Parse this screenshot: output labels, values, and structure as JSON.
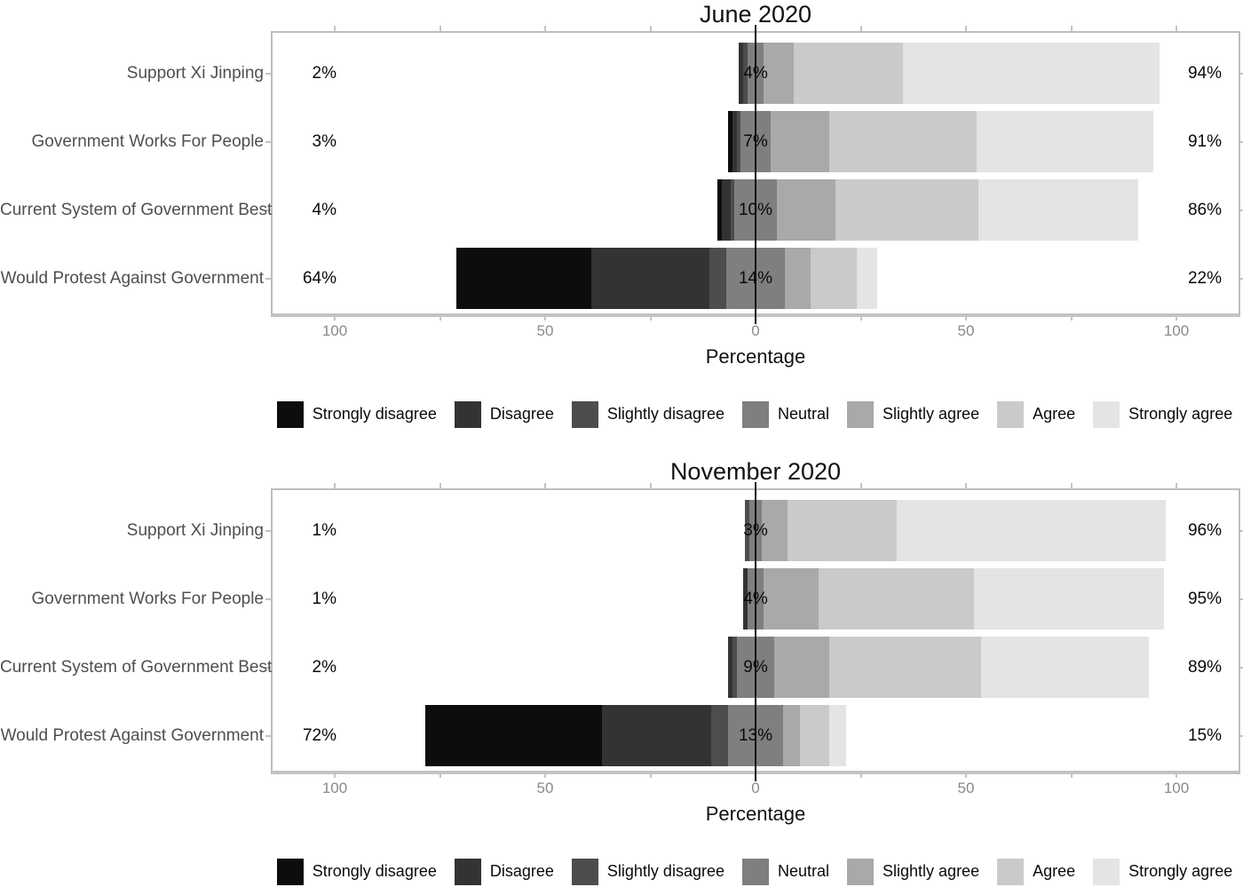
{
  "figure": {
    "x_axis_title": "Percentage",
    "likert_levels": [
      "Strongly disagree",
      "Disagree",
      "Slightly disagree",
      "Neutral",
      "Slightly agree",
      "Agree",
      "Strongly agree"
    ],
    "palette": [
      "#0d0d0d",
      "#333333",
      "#4d4d4d",
      "#7f7f7f",
      "#a9a9a9",
      "#cacaca",
      "#e4e4e4"
    ]
  },
  "chart_data": [
    {
      "type": "bar",
      "variant": "diverging_stacked_likert",
      "title": "June 2020",
      "xlabel": "Percentage",
      "xlim": [
        -114.7,
        114.7
      ],
      "x_tick_values": [
        -100,
        -50,
        0,
        50,
        100
      ],
      "x_tick_labels": [
        "100",
        "50",
        "0",
        "50",
        "100"
      ],
      "x_minor_tick_step": 25,
      "grid": false,
      "zero_reference_line": true,
      "legend_position": "bottom",
      "levels": [
        "Strongly disagree",
        "Disagree",
        "Slightly disagree",
        "Neutral",
        "Slightly agree",
        "Agree",
        "Strongly agree"
      ],
      "colors": [
        "#0d0d0d",
        "#333333",
        "#4d4d4d",
        "#7f7f7f",
        "#a9a9a9",
        "#cacaca",
        "#e4e4e4"
      ],
      "categories": [
        "Support Xi Jinping",
        "Government Works For People",
        "Current System of Government Best",
        "Would Protest Against Government"
      ],
      "rows": [
        {
          "category": "Support Xi Jinping",
          "values": [
            0,
            1,
            1,
            4,
            7,
            26,
            61
          ],
          "disagree_label": "2%",
          "neutral_label": "4%",
          "agree_label": "94%"
        },
        {
          "category": "Government Works For People",
          "values": [
            1,
            1,
            1,
            7,
            14,
            35,
            42
          ],
          "disagree_label": "3%",
          "neutral_label": "7%",
          "agree_label": "91%"
        },
        {
          "category": "Current System of Government Best",
          "values": [
            1,
            2,
            1,
            10,
            14,
            34,
            38
          ],
          "disagree_label": "4%",
          "neutral_label": "10%",
          "agree_label": "86%"
        },
        {
          "category": "Would Protest Against Government",
          "values": [
            32,
            28,
            4,
            14,
            6,
            11,
            5
          ],
          "disagree_label": "64%",
          "neutral_label": "14%",
          "agree_label": "22%"
        }
      ]
    },
    {
      "type": "bar",
      "variant": "diverging_stacked_likert",
      "title": "November 2020",
      "xlabel": "Percentage",
      "xlim": [
        -114.7,
        114.7
      ],
      "x_tick_values": [
        -100,
        -50,
        0,
        50,
        100
      ],
      "x_tick_labels": [
        "100",
        "50",
        "0",
        "50",
        "100"
      ],
      "x_minor_tick_step": 25,
      "grid": false,
      "zero_reference_line": true,
      "legend_position": "bottom",
      "levels": [
        "Strongly disagree",
        "Disagree",
        "Slightly disagree",
        "Neutral",
        "Slightly agree",
        "Agree",
        "Strongly agree"
      ],
      "colors": [
        "#0d0d0d",
        "#333333",
        "#4d4d4d",
        "#7f7f7f",
        "#a9a9a9",
        "#cacaca",
        "#e4e4e4"
      ],
      "categories": [
        "Support Xi Jinping",
        "Government Works For People",
        "Current System of Government Best",
        "Would Protest Against Government"
      ],
      "rows": [
        {
          "category": "Support Xi Jinping",
          "values": [
            0,
            0,
            1,
            3,
            6,
            26,
            64
          ],
          "disagree_label": "1%",
          "neutral_label": "3%",
          "agree_label": "96%"
        },
        {
          "category": "Government Works For People",
          "values": [
            0,
            1,
            0,
            4,
            13,
            37,
            45
          ],
          "disagree_label": "1%",
          "neutral_label": "4%",
          "agree_label": "95%"
        },
        {
          "category": "Current System of Government Best",
          "values": [
            0,
            1,
            1,
            9,
            13,
            36,
            40
          ],
          "disagree_label": "2%",
          "neutral_label": "9%",
          "agree_label": "89%"
        },
        {
          "category": "Would Protest Against Government",
          "values": [
            42,
            26,
            4,
            13,
            4,
            7,
            4
          ],
          "disagree_label": "72%",
          "neutral_label": "13%",
          "agree_label": "15%"
        }
      ]
    }
  ]
}
